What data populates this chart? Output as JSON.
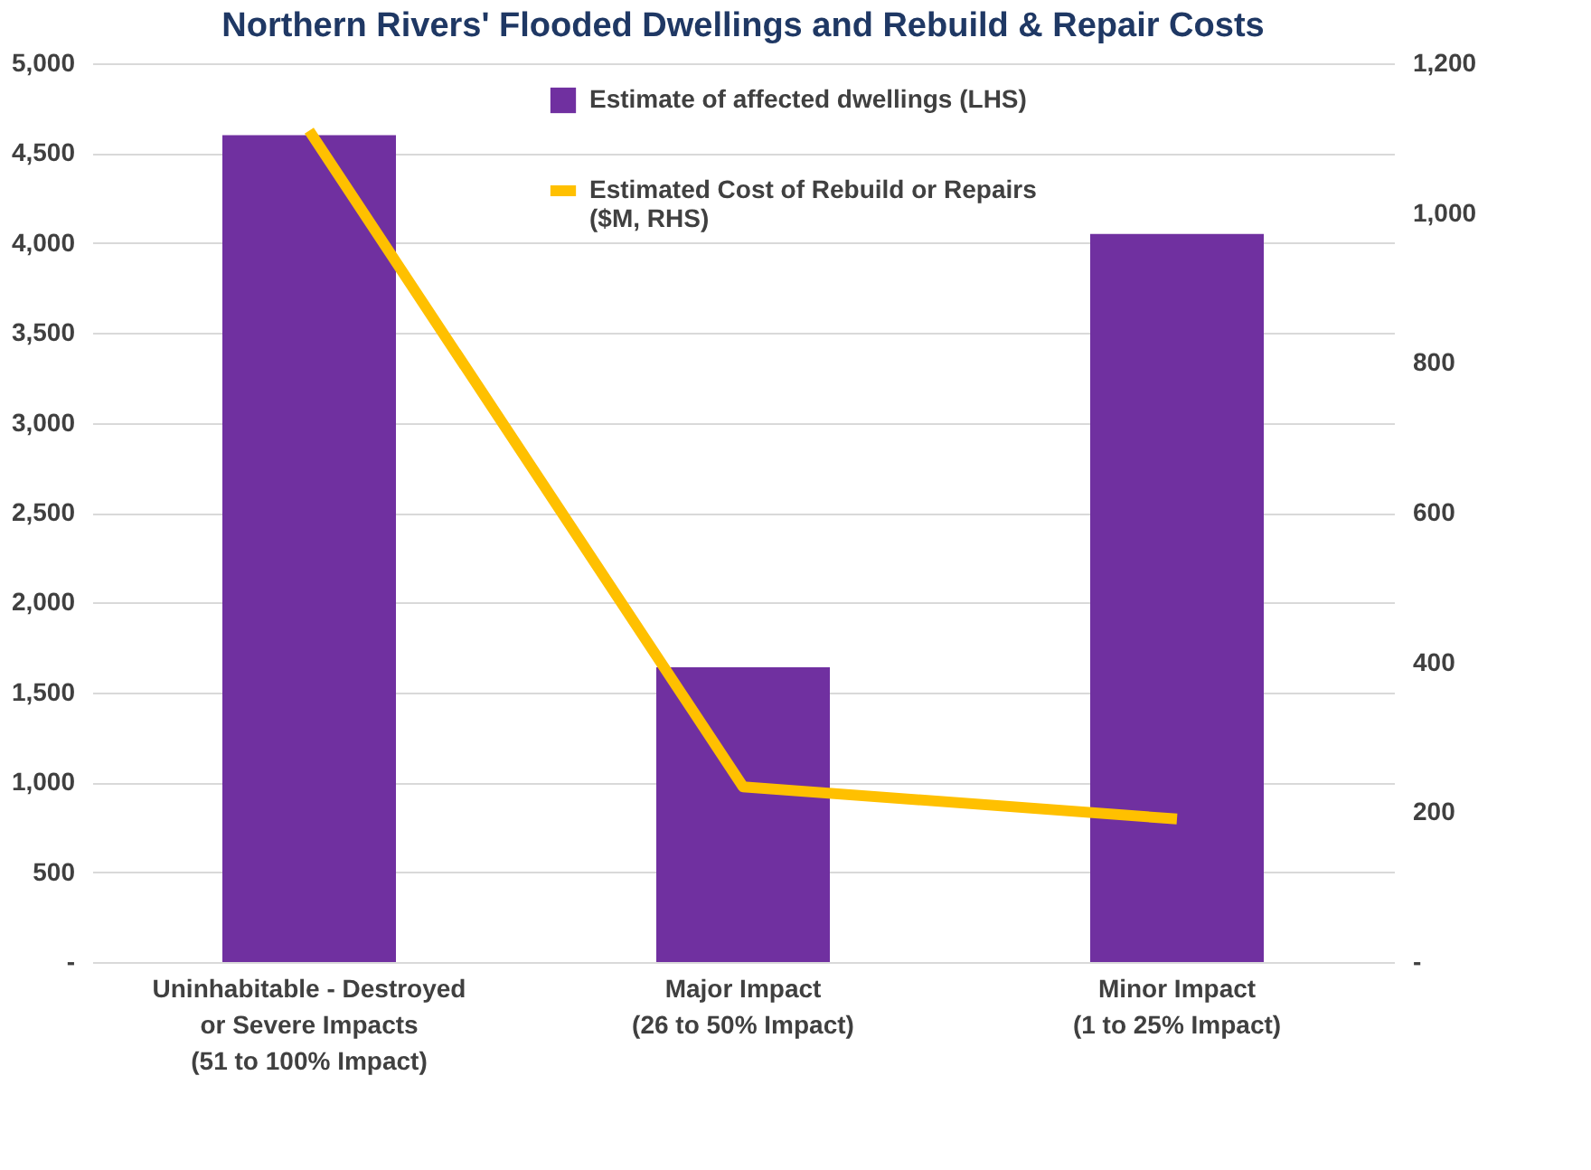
{
  "chart_data": {
    "type": "bar",
    "title": "Northern Rivers' Flooded Dwellings and Rebuild & Repair Costs",
    "categories": [
      "Uninhabitable - Destroyed\nor Severe Impacts\n(51 to 100% Impact)",
      "Major Impact\n(26 to 50% Impact)",
      "Minor Impact\n(1 to 25% Impact)"
    ],
    "series": [
      {
        "name": "Estimate of affected dwellings (LHS)",
        "color": "#7030a0",
        "values": [
          4600,
          1640,
          4050
        ]
      },
      {
        "name": "Estimated Cost of Rebuild or Repairs\n($M, RHS)",
        "type": "line",
        "axis": "y2",
        "color": "#ffc000",
        "values": [
          1110,
          234,
          191
        ]
      }
    ],
    "ylim": [
      0,
      5000
    ],
    "yticks": [
      {
        "value": 0,
        "label": "-"
      },
      500,
      {
        "value": 1000,
        "label": "1,000"
      },
      {
        "value": 1500,
        "label": "1,500"
      },
      {
        "value": 2000,
        "label": "2,000"
      },
      {
        "value": 2500,
        "label": "2,500"
      },
      {
        "value": 3000,
        "label": "3,000"
      },
      {
        "value": 3500,
        "label": "3,500"
      },
      {
        "value": 4000,
        "label": "4,000"
      },
      {
        "value": 4500,
        "label": "4,500"
      },
      {
        "value": 5000,
        "label": "5,000"
      }
    ],
    "y2lim": [
      0,
      1200
    ],
    "y2ticks": [
      {
        "value": 0,
        "label": "-"
      },
      200,
      400,
      600,
      800,
      {
        "value": 1000,
        "label": "1,000"
      },
      {
        "value": 1200,
        "label": "1,200"
      }
    ],
    "grid": "y",
    "legend": "top",
    "marker": "none"
  }
}
